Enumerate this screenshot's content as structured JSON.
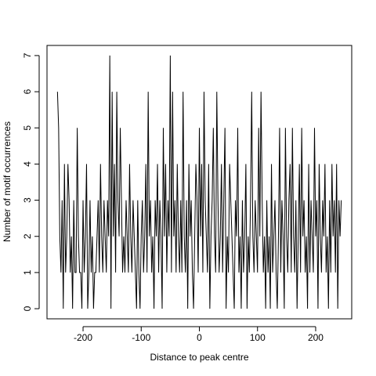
{
  "chart_data": {
    "type": "line",
    "x_label": "Distance to peak centre",
    "y_label": "Number of motif occurrences",
    "xlim": [
      -262,
      262
    ],
    "ylim": [
      -0.28,
      7.28
    ],
    "xticks": [
      -200,
      -100,
      0,
      100,
      200
    ],
    "yticks": [
      0,
      1,
      2,
      3,
      4,
      5,
      6,
      7
    ],
    "color": "#000000",
    "x": [
      -244,
      -242,
      -240,
      -238,
      -236,
      -234,
      -232,
      -230,
      -228,
      -226,
      -224,
      -222,
      -220,
      -218,
      -216,
      -214,
      -212,
      -210,
      -208,
      -206,
      -204,
      -202,
      -200,
      -198,
      -196,
      -194,
      -192,
      -190,
      -188,
      -186,
      -184,
      -182,
      -180,
      -178,
      -176,
      -174,
      -172,
      -170,
      -168,
      -166,
      -164,
      -162,
      -160,
      -158,
      -156,
      -154,
      -152,
      -150,
      -148,
      -146,
      -144,
      -142,
      -140,
      -138,
      -136,
      -134,
      -132,
      -130,
      -128,
      -126,
      -124,
      -122,
      -120,
      -118,
      -116,
      -114,
      -112,
      -110,
      -108,
      -106,
      -104,
      -102,
      -100,
      -98,
      -96,
      -94,
      -92,
      -90,
      -88,
      -86,
      -84,
      -82,
      -80,
      -78,
      -76,
      -74,
      -72,
      -70,
      -68,
      -66,
      -64,
      -62,
      -60,
      -58,
      -56,
      -54,
      -52,
      -50,
      -48,
      -46,
      -44,
      -42,
      -40,
      -38,
      -36,
      -34,
      -32,
      -30,
      -28,
      -26,
      -24,
      -22,
      -20,
      -18,
      -16,
      -14,
      -12,
      -10,
      -8,
      -6,
      -4,
      -2,
      0,
      2,
      4,
      6,
      8,
      10,
      12,
      14,
      16,
      18,
      20,
      22,
      24,
      26,
      28,
      30,
      32,
      34,
      36,
      38,
      40,
      42,
      44,
      46,
      48,
      50,
      52,
      54,
      56,
      58,
      60,
      62,
      64,
      66,
      68,
      70,
      72,
      74,
      76,
      78,
      80,
      82,
      84,
      86,
      88,
      90,
      92,
      94,
      96,
      98,
      100,
      102,
      104,
      106,
      108,
      110,
      112,
      114,
      116,
      118,
      120,
      122,
      124,
      126,
      128,
      130,
      132,
      134,
      136,
      138,
      140,
      142,
      144,
      146,
      148,
      150,
      152,
      154,
      156,
      158,
      160,
      162,
      164,
      166,
      168,
      170,
      172,
      174,
      176,
      178,
      180,
      182,
      184,
      186,
      188,
      190,
      192,
      194,
      196,
      198,
      200,
      202,
      204,
      206,
      208,
      210,
      212,
      214,
      216,
      218,
      220,
      222,
      224,
      226,
      228,
      230,
      232,
      234,
      236,
      238,
      240,
      242,
      244
    ],
    "values": [
      6,
      5,
      2,
      1,
      3,
      0,
      4,
      1,
      2,
      4,
      3,
      1,
      2,
      0,
      3,
      1,
      1,
      5,
      2,
      1,
      1,
      0,
      3,
      1,
      2,
      4,
      0,
      1,
      3,
      1,
      2,
      0,
      1,
      1,
      2,
      3,
      1,
      4,
      2,
      1,
      3,
      2,
      1,
      3,
      2,
      7,
      0,
      6,
      2,
      4,
      1,
      6,
      3,
      2,
      5,
      3,
      1,
      2,
      1,
      3,
      2,
      1,
      4,
      2,
      1,
      3,
      2,
      1,
      0,
      3,
      1,
      0,
      2,
      3,
      1,
      2,
      4,
      1,
      6,
      2,
      3,
      1,
      2,
      0,
      3,
      2,
      4,
      1,
      3,
      2,
      0,
      5,
      2,
      4,
      1,
      3,
      2,
      7,
      1,
      6,
      2,
      3,
      1,
      4,
      2,
      1,
      3,
      1,
      6,
      2,
      1,
      3,
      0,
      4,
      2,
      3,
      1,
      0,
      2,
      4,
      3,
      1,
      5,
      2,
      4,
      1,
      6,
      3,
      2,
      1,
      4,
      0,
      2,
      3,
      5,
      2,
      1,
      6,
      3,
      1,
      2,
      4,
      1,
      3,
      5,
      0,
      2,
      1,
      4,
      3,
      2,
      1,
      0,
      3,
      2,
      5,
      1,
      2,
      0,
      3,
      1,
      2,
      4,
      0,
      2,
      1,
      3,
      6,
      2,
      1,
      3,
      2,
      1,
      5,
      2,
      6,
      3,
      1,
      2,
      0,
      3,
      1,
      2,
      0,
      4,
      1,
      2,
      3,
      1,
      0,
      2,
      5,
      1,
      3,
      2,
      0,
      5,
      2,
      1,
      3,
      4,
      1,
      5,
      2,
      1,
      3,
      0,
      2,
      4,
      1,
      5,
      2,
      3,
      1,
      2,
      0,
      4,
      1,
      3,
      2,
      1,
      5,
      2,
      3,
      0,
      4,
      2,
      1,
      3,
      2,
      4,
      1,
      2,
      0,
      3,
      1,
      4,
      2,
      3,
      1,
      4,
      0,
      3,
      2,
      3
    ]
  }
}
